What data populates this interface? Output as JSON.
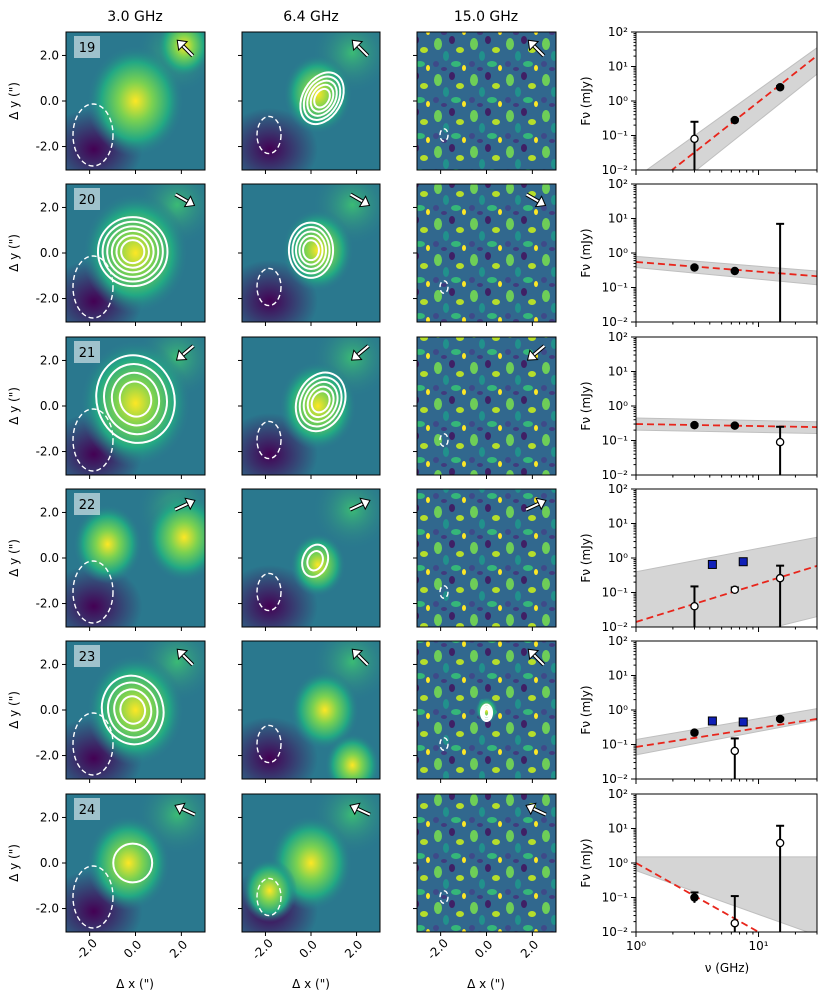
{
  "figure": {
    "column_titles": [
      "3.0 GHz",
      "6.4 GHz",
      "15.0 GHz"
    ],
    "map_xlabel": "Δ x (\")",
    "map_ylabel": "Δ y (\")",
    "map_ticks": [
      "-2.0",
      "0.0",
      "2.0"
    ],
    "map_ytick_values": [
      2.0,
      0.0,
      -2.0
    ],
    "sed_ylabel": "Fν (mJy)",
    "sed_xlabel": "ν (GHz)",
    "sed_yticks": [
      "10²",
      "10¹",
      "10⁰",
      "10⁻¹",
      "10⁻²"
    ],
    "sed_xticks": [
      "10⁰",
      "10¹"
    ],
    "colors": {
      "fit_line": "#e8251b",
      "band": "#c8c8c8",
      "detection": "#000000",
      "extra_points": "#1020b8",
      "extra_edge": "#000000",
      "contour": "#ffffff"
    }
  },
  "sources": [
    {
      "id": "19",
      "arrow_deg": -135
    },
    {
      "id": "20",
      "arrow_deg": 30
    },
    {
      "id": "21",
      "arrow_deg": 140
    },
    {
      "id": "22",
      "arrow_deg": -25
    },
    {
      "id": "23",
      "arrow_deg": -135
    },
    {
      "id": "24",
      "arrow_deg": -155
    }
  ],
  "chart_data": [
    {
      "type": "scatter",
      "source": "19",
      "xlabel": "ν (GHz)",
      "ylabel": "Fν (mJy)",
      "xscale": "log",
      "yscale": "log",
      "xlim": [
        1,
        30
      ],
      "ylim": [
        0.01,
        100
      ],
      "points": [
        {
          "x": 3.0,
          "y": 0.08,
          "lo": 0.01,
          "hi": 0.25,
          "filled": false
        },
        {
          "x": 6.4,
          "y": 0.28,
          "lo": 0.26,
          "hi": 0.3,
          "filled": true
        },
        {
          "x": 15.0,
          "y": 2.5,
          "lo": 2.3,
          "hi": 2.7,
          "filled": true
        }
      ],
      "extra_points": [],
      "fit": {
        "alpha": 2.8,
        "amp_at_1ghz": 0.0015
      },
      "band": {
        "lo_at_1": 0.0004,
        "hi_at_1": 0.006,
        "lo_at_30": 6,
        "hi_at_30": 35
      }
    },
    {
      "type": "scatter",
      "source": "20",
      "xlabel": "ν (GHz)",
      "ylabel": "Fν (mJy)",
      "xscale": "log",
      "yscale": "log",
      "xlim": [
        1,
        30
      ],
      "ylim": [
        0.01,
        100
      ],
      "points": [
        {
          "x": 3.0,
          "y": 0.38,
          "lo": 0.35,
          "hi": 0.41,
          "filled": true
        },
        {
          "x": 6.4,
          "y": 0.3,
          "lo": 0.28,
          "hi": 0.32,
          "filled": true
        },
        {
          "x": 15.0,
          "y": null,
          "lo": 0.01,
          "hi": 7.0,
          "filled": false
        }
      ],
      "extra_points": [],
      "fit": {
        "alpha": -0.28,
        "amp_at_1ghz": 0.55
      },
      "band": {
        "lo_at_1": 0.38,
        "hi_at_1": 0.8,
        "lo_at_30": 0.12,
        "hi_at_30": 0.3
      }
    },
    {
      "type": "scatter",
      "source": "21",
      "xlabel": "ν (GHz)",
      "ylabel": "Fν (mJy)",
      "xscale": "log",
      "yscale": "log",
      "xlim": [
        1,
        30
      ],
      "ylim": [
        0.01,
        100
      ],
      "points": [
        {
          "x": 3.0,
          "y": 0.28,
          "lo": 0.26,
          "hi": 0.3,
          "filled": true
        },
        {
          "x": 6.4,
          "y": 0.27,
          "lo": 0.25,
          "hi": 0.29,
          "filled": true
        },
        {
          "x": 15.0,
          "y": 0.09,
          "lo": 0.01,
          "hi": 0.25,
          "filled": false
        }
      ],
      "extra_points": [],
      "fit": {
        "alpha": -0.06,
        "amp_at_1ghz": 0.3
      },
      "band": {
        "lo_at_1": 0.2,
        "hi_at_1": 0.45,
        "lo_at_30": 0.16,
        "hi_at_30": 0.35
      }
    },
    {
      "type": "scatter",
      "source": "22",
      "xlabel": "ν (GHz)",
      "ylabel": "Fν (mJy)",
      "xscale": "log",
      "yscale": "log",
      "xlim": [
        1,
        30
      ],
      "ylim": [
        0.01,
        100
      ],
      "points": [
        {
          "x": 3.0,
          "y": 0.04,
          "lo": 0.01,
          "hi": 0.15,
          "filled": false
        },
        {
          "x": 6.4,
          "y": 0.12,
          "lo": 0.1,
          "hi": 0.14,
          "filled": false
        },
        {
          "x": 15.0,
          "y": 0.26,
          "lo": 0.01,
          "hi": 0.6,
          "filled": false
        }
      ],
      "extra_points": [
        {
          "x": 4.2,
          "y": 0.65
        },
        {
          "x": 7.5,
          "y": 0.78
        }
      ],
      "fit": {
        "alpha": 1.1,
        "amp_at_1ghz": 0.014
      },
      "band": {
        "lo_at_1": 0.001,
        "hi_at_1": 0.4,
        "lo_at_30": 0.02,
        "hi_at_30": 4
      }
    },
    {
      "type": "scatter",
      "source": "23",
      "xlabel": "ν (GHz)",
      "ylabel": "Fν (mJy)",
      "xscale": "log",
      "yscale": "log",
      "xlim": [
        1,
        30
      ],
      "ylim": [
        0.01,
        100
      ],
      "points": [
        {
          "x": 3.0,
          "y": 0.22,
          "lo": 0.2,
          "hi": 0.24,
          "filled": true
        },
        {
          "x": 6.4,
          "y": 0.065,
          "lo": 0.01,
          "hi": 0.15,
          "filled": false
        },
        {
          "x": 15.0,
          "y": 0.55,
          "lo": 0.51,
          "hi": 0.59,
          "filled": true
        }
      ],
      "extra_points": [
        {
          "x": 4.2,
          "y": 0.48
        },
        {
          "x": 7.5,
          "y": 0.45
        }
      ],
      "fit": {
        "alpha": 0.55,
        "amp_at_1ghz": 0.085
      },
      "band": {
        "lo_at_1": 0.05,
        "hi_at_1": 0.14,
        "lo_at_30": 0.5,
        "hi_at_30": 1.1
      }
    },
    {
      "type": "scatter",
      "source": "24",
      "xlabel": "ν (GHz)",
      "ylabel": "Fν (mJy)",
      "xscale": "log",
      "yscale": "log",
      "xlim": [
        1,
        30
      ],
      "ylim": [
        0.01,
        100
      ],
      "points": [
        {
          "x": 3.0,
          "y": 0.1,
          "lo": 0.07,
          "hi": 0.14,
          "filled": true
        },
        {
          "x": 6.4,
          "y": 0.018,
          "lo": 0.01,
          "hi": 0.11,
          "filled": false
        },
        {
          "x": 15.0,
          "y": 3.8,
          "lo": 0.01,
          "hi": 12.0,
          "filled": false
        }
      ],
      "extra_points": [],
      "fit": {
        "alpha": -2.0,
        "amp_at_1ghz": 1.0
      },
      "band": {
        "lo_at_1": 0.6,
        "hi_at_1": 1.5,
        "lo_at_30": 0.008,
        "hi_at_30": 1.5
      }
    }
  ]
}
